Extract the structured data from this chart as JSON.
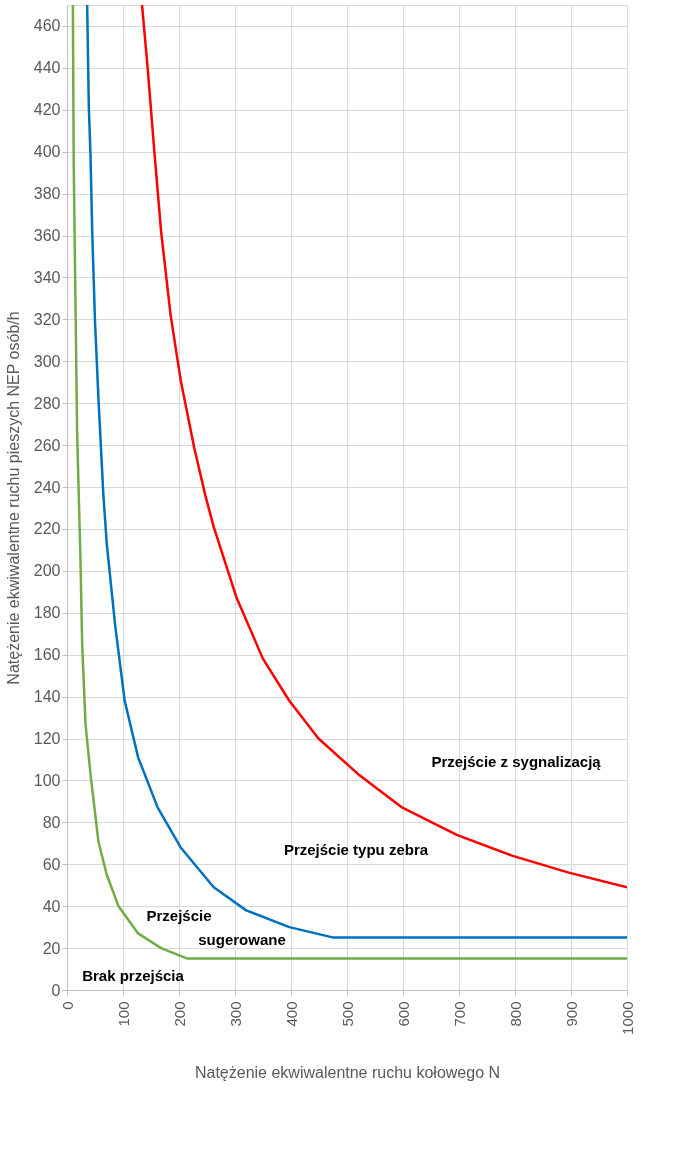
{
  "chart_data": {
    "type": "line",
    "xlabel": "Natężenie ekwiwalentne ruchu kołowego N",
    "ylabel": "Natężenie ekwiwalentne ruchu pieszych NEP osób/h",
    "xlim": [
      0,
      1000
    ],
    "ylim": [
      0,
      470
    ],
    "xticks": [
      0,
      100,
      200,
      300,
      400,
      500,
      600,
      700,
      800,
      900,
      1000
    ],
    "yticks": [
      0,
      20,
      40,
      60,
      80,
      100,
      120,
      140,
      160,
      180,
      200,
      220,
      240,
      260,
      280,
      300,
      320,
      340,
      360,
      380,
      400,
      420,
      440,
      460
    ],
    "grid": true,
    "legend": false,
    "marker": "none",
    "line_style": "solid",
    "series": [
      {
        "color": "#ff0000",
        "x": [
          134,
          144,
          156,
          168,
          185,
          203,
          227,
          247,
          262,
          303,
          350,
          397,
          449,
          520,
          599,
          696,
          796,
          896,
          1000
        ],
        "values": [
          470,
          440,
          400,
          362,
          322,
          291,
          259,
          236,
          221,
          187,
          158,
          138,
          120,
          103,
          87,
          74,
          64,
          56,
          49
        ]
      },
      {
        "color": "#0070c0",
        "x": [
          36,
          39,
          42,
          45,
          50,
          56,
          65,
          71,
          86,
          103,
          127,
          162,
          203,
          262,
          320,
          397,
          476,
          1000
        ],
        "values": [
          470,
          421,
          398,
          362,
          319,
          283,
          236,
          213,
          174,
          138,
          111,
          87,
          68,
          49,
          38,
          30,
          25,
          25
        ]
      },
      {
        "color": "#70ad47",
        "x": [
          10.5,
          12,
          15,
          18,
          21,
          24,
          27,
          33,
          42,
          56,
          71,
          92,
          127,
          168,
          215,
          1000
        ],
        "values": [
          470,
          394,
          331,
          267,
          236,
          206,
          166,
          127,
          103,
          71,
          55,
          40,
          27,
          20,
          15,
          15
        ]
      }
    ],
    "annotations": [
      "Przejście z sygnalizacją",
      "Przejście typu zebra",
      "Przejście\nsugerowane",
      "Brak przejścia"
    ]
  }
}
